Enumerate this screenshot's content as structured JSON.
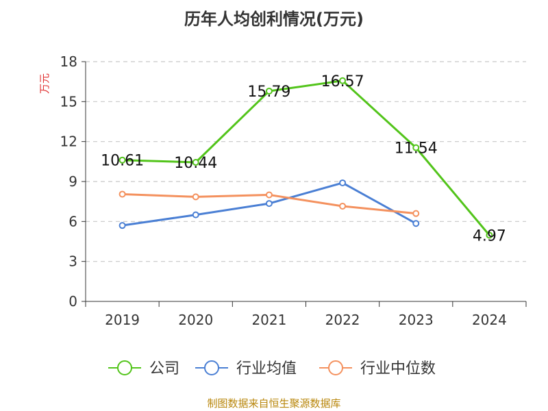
{
  "page": {
    "title": "历年人均创利情况(万元)",
    "source": "制图数据来自恒生聚源数据库"
  },
  "chart_data": {
    "type": "line",
    "title": "历年人均创利情况(万元)",
    "ylabel": "万元",
    "xlabel": "",
    "ylim": [
      0,
      18
    ],
    "yticks": [
      0,
      3,
      6,
      9,
      12,
      15,
      18
    ],
    "categories": [
      "2019",
      "2020",
      "2021",
      "2022",
      "2023",
      "2024"
    ],
    "grid": true,
    "legend_position": "bottom",
    "series": [
      {
        "name": "公司",
        "color": "#52c41a",
        "values": [
          10.61,
          10.44,
          15.79,
          16.57,
          11.54,
          4.97
        ],
        "labels": [
          "10.61",
          "10.44",
          "15.79",
          "16.57",
          "11.54",
          "4.97"
        ]
      },
      {
        "name": "行业均值",
        "color": "#4a7fd4",
        "values": [
          5.7,
          6.5,
          7.35,
          8.9,
          5.85,
          null
        ]
      },
      {
        "name": "行业中位数",
        "color": "#f4915e",
        "values": [
          8.05,
          7.85,
          8.0,
          7.15,
          6.6,
          null
        ]
      }
    ]
  }
}
